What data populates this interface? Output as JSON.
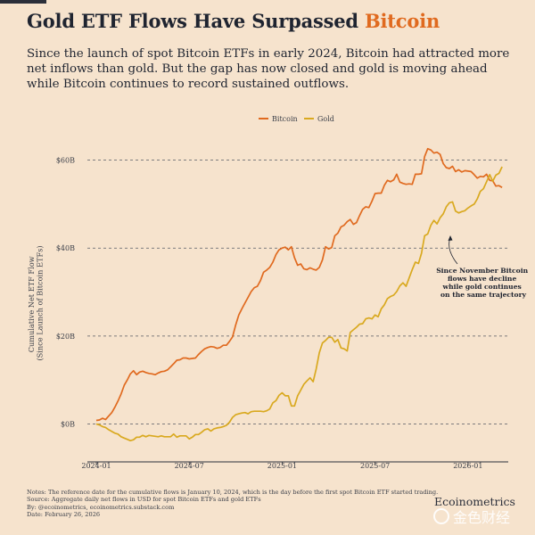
{
  "header": {
    "title_prefix": "Gold ETF Flows Have Surpassed ",
    "title_accent": "Bitcoin",
    "subtitle": "Since the launch of spot Bitcoin ETFs in early 2024, Bitcoin had attracted more net inflows than gold. But the gap has now closed and gold is moving ahead while Bitcoin continues to record sustained outflows."
  },
  "colors": {
    "bitcoin": "#e06a1f",
    "gold": "#d9a91f",
    "background": "#f6e3cd"
  },
  "chart_data": {
    "type": "line",
    "ylabel": "Cumulative Net ETF Flow\n(Since Launch of Bitcoin ETFs)",
    "ylabel_lines": [
      "Cumulative Net ETF Flow",
      "(Since Launch of Bitcoin ETFs)"
    ],
    "ylim": [
      -7,
      66
    ],
    "yticks": [
      0,
      20,
      40,
      60
    ],
    "ytick_labels": [
      "$0B",
      "$20B",
      "$40B",
      "$60B"
    ],
    "xlim": [
      0,
      26.6
    ],
    "xticks": [
      0,
      6,
      12,
      18,
      24
    ],
    "xtick_labels": [
      "2024-01",
      "2024-07",
      "2025-01",
      "2025-07",
      "2026-01"
    ],
    "grid": "horizontal dashed",
    "legend": {
      "position": "top-center",
      "entries": [
        "Bitcoin",
        "Gold"
      ]
    },
    "annotation": {
      "text": [
        "Since November Bitcoin",
        "flows have decline",
        "while gold continues",
        "on the same trajectory"
      ],
      "target": [
        23.5,
        43
      ]
    },
    "series": [
      {
        "name": "Bitcoin",
        "x": [
          0,
          0.2,
          0.4,
          0.6,
          0.8,
          1.0,
          1.2,
          1.4,
          1.6,
          1.8,
          2.0,
          2.2,
          2.4,
          2.6,
          2.8,
          3.0,
          3.2,
          3.4,
          3.6,
          3.8,
          4.0,
          4.2,
          4.4,
          4.6,
          4.8,
          5.0,
          5.2,
          5.4,
          5.6,
          5.8,
          6.0,
          6.2,
          6.4,
          6.6,
          6.8,
          7.0,
          7.2,
          7.4,
          7.6,
          7.8,
          8.0,
          8.2,
          8.4,
          8.6,
          8.8,
          9.0,
          9.2,
          9.4,
          9.6,
          9.8,
          10.0,
          10.2,
          10.4,
          10.6,
          10.8,
          11.0,
          11.2,
          11.4,
          11.6,
          11.8,
          12.0,
          12.2,
          12.4,
          12.6,
          12.8,
          13.0,
          13.2,
          13.4,
          13.6,
          13.8,
          14.0,
          14.2,
          14.4,
          14.6,
          14.8,
          15.0,
          15.2,
          15.4,
          15.6,
          15.8,
          16.0,
          16.2,
          16.4,
          16.6,
          16.8,
          17.0,
          17.2,
          17.4,
          17.6,
          17.8,
          18.0,
          18.2,
          18.4,
          18.6,
          18.8,
          19.0,
          19.2,
          19.4,
          19.6,
          19.8,
          20.0,
          20.2,
          20.4,
          20.6,
          20.8,
          21.0,
          21.2,
          21.4,
          21.6,
          21.8,
          22.0,
          22.2,
          22.4,
          22.6,
          22.8,
          23.0,
          23.2,
          23.4,
          23.6,
          23.8,
          24.0,
          24.2,
          24.4,
          24.6,
          24.8,
          25.0,
          25.2,
          25.4,
          25.6,
          25.8,
          26.0,
          26.2
        ],
        "values": [
          0.8,
          0.9,
          1.3,
          1.0,
          1.8,
          2.6,
          3.8,
          5.2,
          6.8,
          8.8,
          10.0,
          11.4,
          12.1,
          11.2,
          11.8,
          12.0,
          11.7,
          11.5,
          11.4,
          11.2,
          11.6,
          11.9,
          12.0,
          12.3,
          13.0,
          13.7,
          14.5,
          14.6,
          15.0,
          15.0,
          14.8,
          14.9,
          15.0,
          15.8,
          16.5,
          17.1,
          17.4,
          17.6,
          17.5,
          17.2,
          17.4,
          17.9,
          17.9,
          18.8,
          19.8,
          22.5,
          24.8,
          26.2,
          27.5,
          28.8,
          30.1,
          31.0,
          31.3,
          32.6,
          34.5,
          35.0,
          35.6,
          36.8,
          38.5,
          39.6,
          40.0,
          40.2,
          39.6,
          40.3,
          37.8,
          36.1,
          36.4,
          35.3,
          35.1,
          35.5,
          35.2,
          35.0,
          35.6,
          37.3,
          40.3,
          39.8,
          40.1,
          42.8,
          43.4,
          44.8,
          45.2,
          46.0,
          46.5,
          45.4,
          45.8,
          47.4,
          48.8,
          49.4,
          49.2,
          50.7,
          52.4,
          52.5,
          52.5,
          54.3,
          55.4,
          55.1,
          55.5,
          56.8,
          55.0,
          54.7,
          54.5,
          54.6,
          54.5,
          56.8,
          56.8,
          56.9,
          60.8,
          62.6,
          62.3,
          61.6,
          61.8,
          61.3,
          59.2,
          58.3,
          58.1,
          58.6,
          57.4,
          57.8,
          57.3,
          57.6,
          57.5,
          57.4,
          56.7,
          55.9,
          56.3,
          56.2,
          56.8,
          55.4,
          55.3,
          54.1,
          54.2,
          53.8
        ],
        "color": "#e06a1f"
      },
      {
        "name": "Gold",
        "x": [
          0,
          0.2,
          0.4,
          0.6,
          0.8,
          1.0,
          1.2,
          1.4,
          1.6,
          1.8,
          2.0,
          2.2,
          2.4,
          2.6,
          2.8,
          3.0,
          3.2,
          3.4,
          3.6,
          3.8,
          4.0,
          4.2,
          4.4,
          4.6,
          4.8,
          5.0,
          5.2,
          5.4,
          5.6,
          5.8,
          6.0,
          6.2,
          6.4,
          6.6,
          6.8,
          7.0,
          7.2,
          7.4,
          7.6,
          7.8,
          8.0,
          8.2,
          8.4,
          8.6,
          8.8,
          9.0,
          9.2,
          9.4,
          9.6,
          9.8,
          10.0,
          10.2,
          10.4,
          10.6,
          10.8,
          11.0,
          11.2,
          11.4,
          11.6,
          11.8,
          12.0,
          12.2,
          12.4,
          12.6,
          12.8,
          13.0,
          13.2,
          13.4,
          13.6,
          13.8,
          14.0,
          14.2,
          14.4,
          14.6,
          14.8,
          15.0,
          15.2,
          15.4,
          15.6,
          15.8,
          16.0,
          16.2,
          16.4,
          16.6,
          16.8,
          17.0,
          17.2,
          17.4,
          17.6,
          17.8,
          18.0,
          18.2,
          18.4,
          18.6,
          18.8,
          19.0,
          19.2,
          19.4,
          19.6,
          19.8,
          20.0,
          20.2,
          20.4,
          20.6,
          20.8,
          21.0,
          21.2,
          21.4,
          21.6,
          21.8,
          22.0,
          22.2,
          22.4,
          22.6,
          22.8,
          23.0,
          23.2,
          23.4,
          23.6,
          23.8,
          24.0,
          24.2,
          24.4,
          24.6,
          24.8,
          25.0,
          25.2,
          25.4,
          25.6,
          25.8,
          26.0,
          26.2
        ],
        "values": [
          0.0,
          -0.2,
          -0.6,
          -0.8,
          -1.3,
          -1.7,
          -2.1,
          -2.3,
          -2.9,
          -3.2,
          -3.5,
          -3.8,
          -3.6,
          -3.0,
          -3.0,
          -2.6,
          -2.9,
          -2.6,
          -2.7,
          -2.8,
          -2.9,
          -2.7,
          -2.9,
          -2.9,
          -2.9,
          -2.3,
          -3.0,
          -2.7,
          -2.7,
          -2.7,
          -3.4,
          -3.0,
          -2.4,
          -2.4,
          -1.9,
          -1.3,
          -1.1,
          -1.6,
          -1.1,
          -0.9,
          -0.8,
          -0.6,
          -0.3,
          0.4,
          1.5,
          2.1,
          2.3,
          2.5,
          2.6,
          2.3,
          2.8,
          2.9,
          2.9,
          2.9,
          2.8,
          3.0,
          3.4,
          4.8,
          5.3,
          6.5,
          7.1,
          6.4,
          6.4,
          4.1,
          4.1,
          6.4,
          7.7,
          9.0,
          9.8,
          10.5,
          9.6,
          12.5,
          16.2,
          18.4,
          19.0,
          19.7,
          19.7,
          18.6,
          19.2,
          17.3,
          17.1,
          16.6,
          20.8,
          21.4,
          22.0,
          22.7,
          22.8,
          23.9,
          24.1,
          23.9,
          24.8,
          24.4,
          26.2,
          27.1,
          28.5,
          29.0,
          29.3,
          30.1,
          31.4,
          32.1,
          31.3,
          33.2,
          35.1,
          36.8,
          36.5,
          38.8,
          42.8,
          43.2,
          45.2,
          46.3,
          45.5,
          46.9,
          47.8,
          49.4,
          50.3,
          50.5,
          48.4,
          48.0,
          48.3,
          48.5,
          49.1,
          49.6,
          50.0,
          51.2,
          52.9,
          53.5,
          55.1,
          56.7,
          55.2,
          56.6,
          57.0,
          58.5
        ],
        "color": "#d9a91f"
      }
    ]
  },
  "notes": {
    "line1": "Notes: The reference date for the cumulative flows is January 10, 2024, which is the day before the first spot Bitcoin ETF started trading.",
    "line2": "Source: Aggregate daily net flows in USD for spot Bitcoin ETFs and gold ETFs",
    "line3": "By: @ecoinometrics, ecoinometrics.substack.com",
    "line4": "Date: February 26, 2026"
  },
  "brand": "Ecoinometrics",
  "watermark": "金色财经"
}
